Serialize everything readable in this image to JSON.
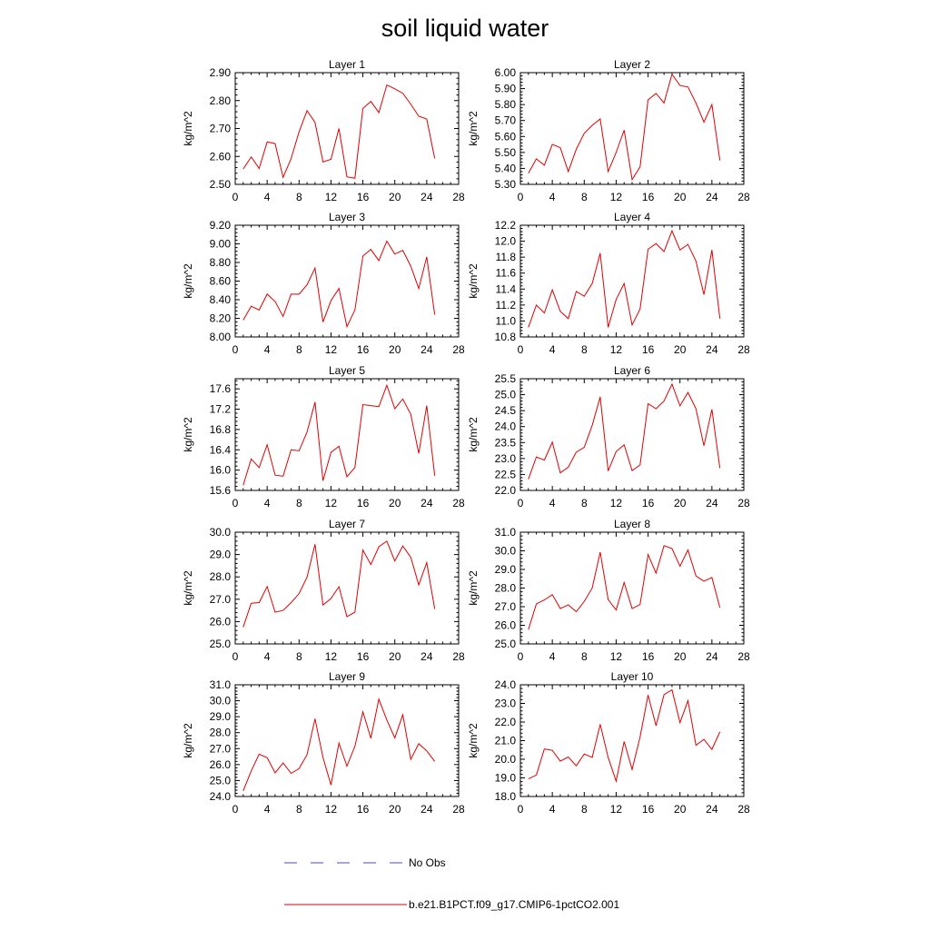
{
  "chart_data": {
    "type": "line",
    "title": "soil liquid water",
    "ylabel": "kg/m^2",
    "xlim": [
      0,
      28
    ],
    "xticks": [
      0,
      4,
      8,
      12,
      16,
      20,
      24,
      28
    ],
    "grid": false,
    "legend": {
      "placement": "bottom",
      "entries": [
        {
          "label": "No Obs",
          "color": "#4a4ac8",
          "style": "dashed"
        },
        {
          "label": "b.e21.B1PCT.f09_g17.CMIP6-1pctCO2.001",
          "color": "#e00000",
          "style": "solid"
        }
      ]
    },
    "x": [
      1,
      2,
      3,
      4,
      5,
      6,
      7,
      8,
      9,
      10,
      11,
      12,
      13,
      14,
      15,
      16,
      17,
      18,
      19,
      20,
      21,
      22,
      23,
      24,
      25
    ],
    "panels": [
      {
        "title": "Layer 1",
        "ylim": [
          2.5,
          2.9
        ],
        "yticks": [
          "2.50",
          "2.60",
          "2.70",
          "2.80",
          "2.90"
        ],
        "values": [
          2.555,
          2.598,
          2.557,
          2.652,
          2.646,
          2.525,
          2.592,
          2.688,
          2.764,
          2.722,
          2.58,
          2.59,
          2.7,
          2.527,
          2.522,
          2.772,
          2.797,
          2.757,
          2.856,
          2.842,
          2.826,
          2.787,
          2.744,
          2.734,
          2.593
        ]
      },
      {
        "title": "Layer 2",
        "ylim": [
          5.3,
          6.0
        ],
        "yticks": [
          "5.30",
          "5.40",
          "5.50",
          "5.60",
          "5.70",
          "5.80",
          "5.90",
          "6.00"
        ],
        "values": [
          5.37,
          5.46,
          5.42,
          5.55,
          5.53,
          5.38,
          5.52,
          5.62,
          5.67,
          5.71,
          5.38,
          5.5,
          5.64,
          5.33,
          5.41,
          5.83,
          5.87,
          5.81,
          5.99,
          5.92,
          5.91,
          5.81,
          5.69,
          5.8,
          5.45
        ]
      },
      {
        "title": "Layer 3",
        "ylim": [
          8.0,
          9.2
        ],
        "yticks": [
          "8.00",
          "8.20",
          "8.40",
          "8.60",
          "8.80",
          "9.00",
          "9.20"
        ],
        "values": [
          8.18,
          8.33,
          8.29,
          8.46,
          8.38,
          8.22,
          8.46,
          8.46,
          8.56,
          8.74,
          8.16,
          8.39,
          8.52,
          8.11,
          8.29,
          8.87,
          8.94,
          8.82,
          9.03,
          8.89,
          8.93,
          8.76,
          8.52,
          8.86,
          8.24
        ]
      },
      {
        "title": "Layer 4",
        "ylim": [
          10.8,
          12.2
        ],
        "yticks": [
          "10.8",
          "11.0",
          "11.2",
          "11.4",
          "11.6",
          "11.8",
          "12.0",
          "12.2"
        ],
        "values": [
          10.92,
          11.2,
          11.1,
          11.39,
          11.12,
          11.03,
          11.37,
          11.31,
          11.47,
          11.85,
          10.92,
          11.27,
          11.47,
          10.95,
          11.15,
          11.9,
          11.97,
          11.87,
          12.13,
          11.89,
          11.96,
          11.75,
          11.33,
          11.89,
          11.03
        ]
      },
      {
        "title": "Layer 5",
        "ylim": [
          15.6,
          17.8
        ],
        "yticks": [
          "15.6",
          "16.0",
          "16.4",
          "16.8",
          "17.2",
          "17.6"
        ],
        "values": [
          15.7,
          16.22,
          16.05,
          16.5,
          15.9,
          15.88,
          16.4,
          16.38,
          16.75,
          17.34,
          15.79,
          16.35,
          16.47,
          15.87,
          16.05,
          17.29,
          17.27,
          17.25,
          17.67,
          17.21,
          17.4,
          17.1,
          16.33,
          17.27,
          15.89
        ]
      },
      {
        "title": "Layer 6",
        "ylim": [
          22.0,
          25.5
        ],
        "yticks": [
          "22.0",
          "22.5",
          "23.0",
          "23.5",
          "24.0",
          "24.5",
          "25.0",
          "25.5"
        ],
        "values": [
          22.35,
          23.05,
          22.95,
          23.51,
          22.55,
          22.73,
          23.2,
          23.35,
          24.04,
          24.93,
          22.61,
          23.22,
          23.43,
          22.62,
          22.8,
          24.72,
          24.56,
          24.8,
          25.33,
          24.65,
          25.07,
          24.56,
          23.4,
          24.54,
          22.7
        ]
      },
      {
        "title": "Layer 7",
        "ylim": [
          25.0,
          30.0
        ],
        "yticks": [
          "25.0",
          "26.0",
          "27.0",
          "28.0",
          "29.0",
          "30.0"
        ],
        "values": [
          25.75,
          26.82,
          26.85,
          27.57,
          26.42,
          26.5,
          26.85,
          27.25,
          27.99,
          29.46,
          26.74,
          27.03,
          27.56,
          26.22,
          26.42,
          29.2,
          28.55,
          29.35,
          29.6,
          28.71,
          29.38,
          28.88,
          27.64,
          28.64,
          26.57
        ]
      },
      {
        "title": "Layer 8",
        "ylim": [
          25.0,
          31.0
        ],
        "yticks": [
          "25.0",
          "26.0",
          "27.0",
          "28.0",
          "29.0",
          "30.0",
          "31.0"
        ],
        "values": [
          25.77,
          27.15,
          27.36,
          27.65,
          26.9,
          27.1,
          26.73,
          27.28,
          28.0,
          29.93,
          27.38,
          26.82,
          28.3,
          26.9,
          27.12,
          29.8,
          28.8,
          30.28,
          30.12,
          29.17,
          30.05,
          28.65,
          28.37,
          28.57,
          26.95
        ]
      },
      {
        "title": "Layer 9",
        "ylim": [
          24.0,
          31.0
        ],
        "yticks": [
          "24.0",
          "25.0",
          "26.0",
          "27.0",
          "28.0",
          "29.0",
          "30.0",
          "31.0"
        ],
        "values": [
          24.35,
          25.6,
          26.65,
          26.43,
          25.48,
          26.1,
          25.45,
          25.75,
          26.62,
          28.87,
          26.44,
          24.72,
          27.35,
          25.9,
          27.15,
          29.3,
          27.65,
          30.1,
          28.79,
          27.67,
          29.12,
          26.33,
          27.31,
          26.86,
          26.2
        ]
      },
      {
        "title": "Layer 10",
        "ylim": [
          18.0,
          24.0
        ],
        "yticks": [
          "18.0",
          "19.0",
          "20.0",
          "21.0",
          "22.0",
          "23.0",
          "24.0"
        ],
        "values": [
          18.95,
          19.15,
          20.55,
          20.48,
          19.9,
          20.12,
          19.65,
          20.28,
          20.1,
          21.88,
          20.1,
          18.82,
          20.95,
          19.45,
          21.2,
          23.45,
          21.8,
          23.47,
          23.73,
          21.97,
          23.15,
          20.75,
          21.07,
          20.53,
          21.47
        ]
      }
    ]
  }
}
